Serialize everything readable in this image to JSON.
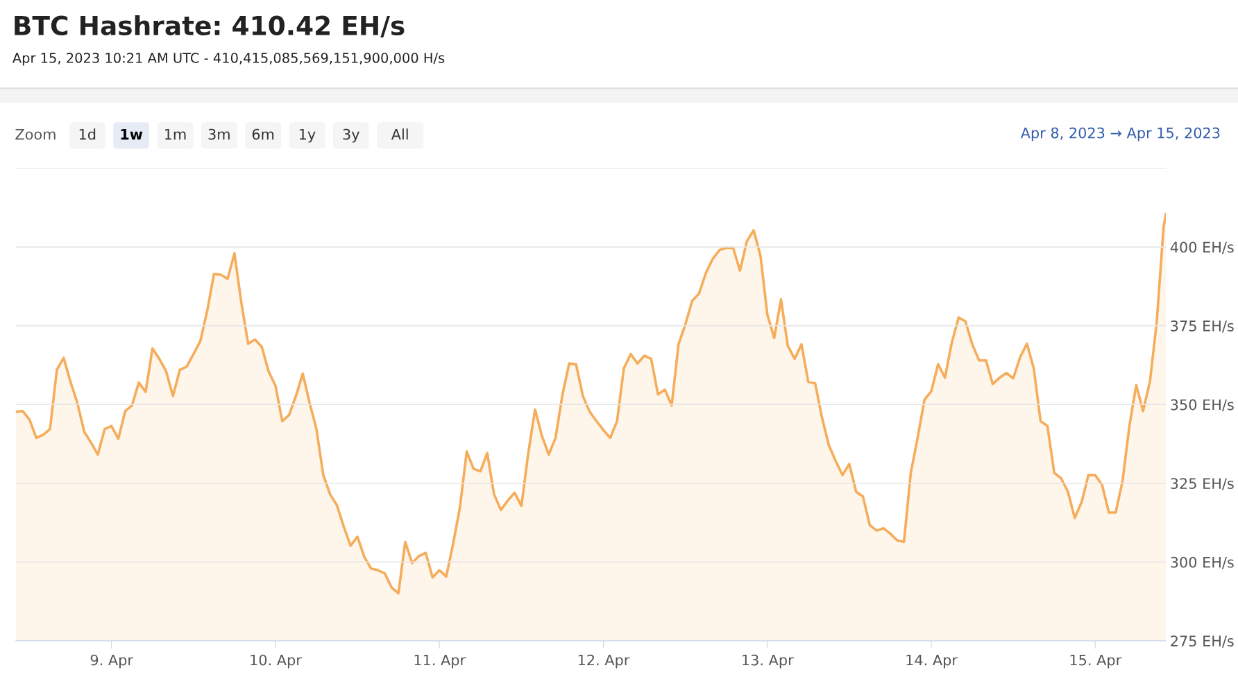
{
  "chart_data": {
    "type": "area",
    "title": "BTC Hashrate: 410.42 EH/s",
    "subtitle": "Apr 15, 2023 10:21 AM UTC - 410,415,085,569,151,900,000 H/s",
    "annotations": [
      "Zoom",
      "1d",
      "1w",
      "1m",
      "3m",
      "6m",
      "1y",
      "3y",
      "All",
      "Apr 8, 2023 → Apr 15, 2023"
    ],
    "x": [
      "2023-04-08T10:00",
      "2023-04-08T11:00",
      "2023-04-08T12:00",
      "2023-04-08T13:00",
      "2023-04-08T14:00",
      "2023-04-08T15:00",
      "2023-04-08T16:00",
      "2023-04-08T17:00",
      "2023-04-08T18:00",
      "2023-04-08T19:00",
      "2023-04-08T20:00",
      "2023-04-08T21:00",
      "2023-04-08T22:00",
      "2023-04-08T23:00",
      "2023-04-09T00:00",
      "2023-04-09T01:00",
      "2023-04-09T02:00",
      "2023-04-09T03:00",
      "2023-04-09T04:00",
      "2023-04-09T05:00",
      "2023-04-09T06:00",
      "2023-04-09T07:00",
      "2023-04-09T08:00",
      "2023-04-09T09:00",
      "2023-04-09T10:00",
      "2023-04-09T11:00",
      "2023-04-09T12:00",
      "2023-04-09T13:00",
      "2023-04-09T14:00",
      "2023-04-09T15:00",
      "2023-04-09T16:00",
      "2023-04-09T17:00",
      "2023-04-09T18:00",
      "2023-04-09T19:00",
      "2023-04-09T20:00",
      "2023-04-09T21:00",
      "2023-04-09T22:00",
      "2023-04-09T23:00",
      "2023-04-10T00:00",
      "2023-04-10T01:00",
      "2023-04-10T02:00",
      "2023-04-10T03:00",
      "2023-04-10T04:00",
      "2023-04-10T05:00",
      "2023-04-10T06:00",
      "2023-04-10T07:00",
      "2023-04-10T08:00",
      "2023-04-10T09:00",
      "2023-04-10T10:00",
      "2023-04-10T11:00",
      "2023-04-10T12:00",
      "2023-04-10T13:00",
      "2023-04-10T14:00",
      "2023-04-10T15:00",
      "2023-04-10T16:00",
      "2023-04-10T17:00",
      "2023-04-10T18:00",
      "2023-04-10T19:00",
      "2023-04-10T20:00",
      "2023-04-10T21:00",
      "2023-04-10T22:00",
      "2023-04-10T23:00",
      "2023-04-11T00:00",
      "2023-04-11T01:00",
      "2023-04-11T02:00",
      "2023-04-11T03:00",
      "2023-04-11T04:00",
      "2023-04-11T05:00",
      "2023-04-11T06:00",
      "2023-04-11T07:00",
      "2023-04-11T08:00",
      "2023-04-11T09:00",
      "2023-04-11T10:00",
      "2023-04-11T11:00",
      "2023-04-11T12:00",
      "2023-04-11T13:00",
      "2023-04-11T14:00",
      "2023-04-11T15:00",
      "2023-04-11T16:00",
      "2023-04-11T17:00",
      "2023-04-11T18:00",
      "2023-04-11T19:00",
      "2023-04-11T20:00",
      "2023-04-11T21:00",
      "2023-04-11T22:00",
      "2023-04-11T23:00",
      "2023-04-12T00:00",
      "2023-04-12T01:00",
      "2023-04-12T02:00",
      "2023-04-12T03:00",
      "2023-04-12T04:00",
      "2023-04-12T05:00",
      "2023-04-12T06:00",
      "2023-04-12T07:00",
      "2023-04-12T08:00",
      "2023-04-12T09:00",
      "2023-04-12T10:00",
      "2023-04-12T11:00",
      "2023-04-12T12:00",
      "2023-04-12T13:00",
      "2023-04-12T14:00",
      "2023-04-12T15:00",
      "2023-04-12T16:00",
      "2023-04-12T17:00",
      "2023-04-12T18:00",
      "2023-04-12T19:00",
      "2023-04-12T20:00",
      "2023-04-12T21:00",
      "2023-04-12T22:00",
      "2023-04-12T23:00",
      "2023-04-13T00:00",
      "2023-04-13T01:00",
      "2023-04-13T02:00",
      "2023-04-13T03:00",
      "2023-04-13T04:00",
      "2023-04-13T05:00",
      "2023-04-13T06:00",
      "2023-04-13T07:00",
      "2023-04-13T08:00",
      "2023-04-13T09:00",
      "2023-04-13T10:00",
      "2023-04-13T11:00",
      "2023-04-13T12:00",
      "2023-04-13T13:00",
      "2023-04-13T14:00",
      "2023-04-13T15:00",
      "2023-04-13T16:00",
      "2023-04-13T17:00",
      "2023-04-13T18:00",
      "2023-04-13T19:00",
      "2023-04-13T20:00",
      "2023-04-13T21:00",
      "2023-04-13T22:00",
      "2023-04-13T23:00",
      "2023-04-14T00:00",
      "2023-04-14T01:00",
      "2023-04-14T02:00",
      "2023-04-14T03:00",
      "2023-04-14T04:00",
      "2023-04-14T05:00",
      "2023-04-14T06:00",
      "2023-04-14T07:00",
      "2023-04-14T08:00",
      "2023-04-14T09:00",
      "2023-04-14T10:00",
      "2023-04-14T11:00",
      "2023-04-14T12:00",
      "2023-04-14T13:00",
      "2023-04-14T14:00",
      "2023-04-14T15:00",
      "2023-04-14T16:00",
      "2023-04-14T17:00",
      "2023-04-14T18:00",
      "2023-04-14T19:00",
      "2023-04-14T20:00",
      "2023-04-14T21:00",
      "2023-04-14T22:00",
      "2023-04-14T23:00",
      "2023-04-15T00:00",
      "2023-04-15T01:00",
      "2023-04-15T02:00",
      "2023-04-15T03:00",
      "2023-04-15T04:00",
      "2023-04-15T05:00",
      "2023-04-15T06:00",
      "2023-04-15T07:00",
      "2023-04-15T08:00",
      "2023-04-15T09:00",
      "2023-04-15T10:00",
      "2023-04-15T10:21"
    ],
    "series": [
      {
        "color": "#f5ad5b",
        "values": [
          347.7,
          347.9,
          345.2,
          339.4,
          340.4,
          342.2,
          361.0,
          364.8,
          357.2,
          350.5,
          341.4,
          337.9,
          334.1,
          342.2,
          343.2,
          339.1,
          347.9,
          349.7,
          357.0,
          354.0,
          367.8,
          364.5,
          360.5,
          352.7,
          361.0,
          362.0,
          366.0,
          370.1,
          379.6,
          391.4,
          391.2,
          389.9,
          398.0,
          382.4,
          369.3,
          370.6,
          368.3,
          360.5,
          356.0,
          344.7,
          346.7,
          352.7,
          359.8,
          350.5,
          342.2,
          327.6,
          321.5,
          318.0,
          311.2,
          305.2,
          308.0,
          301.7,
          297.9,
          297.4,
          296.4,
          291.9,
          290.1,
          306.4,
          299.7,
          301.9,
          302.9,
          295.1,
          297.4,
          295.4,
          305.7,
          317.3,
          335.1,
          329.6,
          328.8,
          334.6,
          321.5,
          316.5,
          319.5,
          322.0,
          317.8,
          334.4,
          348.4,
          340.1,
          334.1,
          339.4,
          353.0,
          363.0,
          362.8,
          352.7,
          347.7,
          344.7,
          341.9,
          339.4,
          344.7,
          361.5,
          366.0,
          363.0,
          365.5,
          364.5,
          353.2,
          354.7,
          349.7,
          369.1,
          375.4,
          382.9,
          385.2,
          391.7,
          396.2,
          399.0,
          399.7,
          399.7,
          392.5,
          401.8,
          405.3,
          397.2,
          378.6,
          371.1,
          383.4,
          368.6,
          364.5,
          369.1,
          357.2,
          356.7,
          345.9,
          337.1,
          332.1,
          327.6,
          331.1,
          322.3,
          320.8,
          311.7,
          310.0,
          310.7,
          309.0,
          306.9,
          306.4,
          328.3,
          339.4,
          351.5,
          354.2,
          362.8,
          358.5,
          369.6,
          377.6,
          376.4,
          369.1,
          364.0,
          364.0,
          356.5,
          358.5,
          360.0,
          358.3,
          365.0,
          369.3,
          361.5,
          344.7,
          343.2,
          328.3,
          326.6,
          322.3,
          314.0,
          319.0,
          327.6,
          327.6,
          324.5,
          315.7,
          315.7,
          325.8,
          343.2,
          356.2,
          347.9,
          357.2,
          376.1,
          406.3,
          410.42
        ]
      }
    ],
    "xlim": [
      "2023-04-08T10:00",
      "2023-04-15T10:21"
    ],
    "xticks": [
      {
        "value": "2023-04-09",
        "label": "9. Apr"
      },
      {
        "value": "2023-04-10",
        "label": "10. Apr"
      },
      {
        "value": "2023-04-11",
        "label": "11. Apr"
      },
      {
        "value": "2023-04-12",
        "label": "12. Apr"
      },
      {
        "value": "2023-04-13",
        "label": "13. Apr"
      },
      {
        "value": "2023-04-14",
        "label": "14. Apr"
      },
      {
        "value": "2023-04-15",
        "label": "15. Apr"
      }
    ],
    "ylim": [
      275,
      425
    ],
    "yticks": [
      {
        "value": 275,
        "label": "275 EH/s"
      },
      {
        "value": 300,
        "label": "300 EH/s"
      },
      {
        "value": 325,
        "label": "325 EH/s"
      },
      {
        "value": 350,
        "label": "350 EH/s"
      },
      {
        "value": 375,
        "label": "375 EH/s"
      },
      {
        "value": 400,
        "label": "400 EH/s"
      }
    ],
    "grid": "y",
    "legend": false,
    "marker": "none",
    "line_style": "solid"
  }
}
